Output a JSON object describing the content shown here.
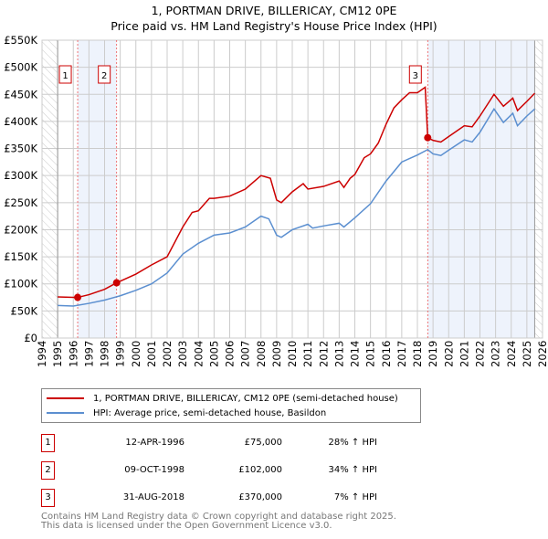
{
  "title": "1, PORTMAN DRIVE, BILLERICAY, CM12 0PE",
  "subtitle": "Price paid vs. HM Land Registry's House Price Index (HPI)",
  "chart_data": {
    "type": "line",
    "xlim": [
      1994,
      2026
    ],
    "ylim": [
      0,
      550000
    ],
    "x_ticks": [
      "1994",
      "1995",
      "1996",
      "1997",
      "1998",
      "1999",
      "2000",
      "2001",
      "2002",
      "2003",
      "2004",
      "2005",
      "2006",
      "2007",
      "2008",
      "2009",
      "2010",
      "2011",
      "2012",
      "2013",
      "2014",
      "2015",
      "2016",
      "2017",
      "2018",
      "2019",
      "2020",
      "2021",
      "2022",
      "2023",
      "2024",
      "2025",
      "2026"
    ],
    "y_ticks": [
      {
        "v": 0,
        "label": "£0"
      },
      {
        "v": 50000,
        "label": "£50K"
      },
      {
        "v": 100000,
        "label": "£100K"
      },
      {
        "v": 150000,
        "label": "£150K"
      },
      {
        "v": 200000,
        "label": "£200K"
      },
      {
        "v": 250000,
        "label": "£250K"
      },
      {
        "v": 300000,
        "label": "£300K"
      },
      {
        "v": 350000,
        "label": "£350K"
      },
      {
        "v": 400000,
        "label": "£400K"
      },
      {
        "v": 450000,
        "label": "£450K"
      },
      {
        "v": 500000,
        "label": "£500K"
      },
      {
        "v": 550000,
        "label": "£550K"
      }
    ],
    "data_range": [
      1995,
      2025.5
    ],
    "series": [
      {
        "name": "1, PORTMAN DRIVE, BILLERICAY, CM12 0PE (semi-detached house)",
        "color": "#cc0000",
        "x": [
          1995,
          1996,
          1996.28,
          1997,
          1998,
          1998.77,
          1999,
          2000,
          2001,
          2002,
          2003,
          2003.6,
          2004,
          2004.7,
          2005,
          2006,
          2007,
          2008,
          2008.6,
          2009,
          2009.3,
          2010,
          2010.7,
          2011,
          2012,
          2013,
          2013.3,
          2013.7,
          2014,
          2014.6,
          2015,
          2015.5,
          2016,
          2016.5,
          2017,
          2017.5,
          2018,
          2018.5,
          2018.66,
          2019,
          2019.5,
          2020,
          2021,
          2021.5,
          2022,
          2022.9,
          2023.5,
          2024.1,
          2024.4,
          2025,
          2025.5
        ],
        "y": [
          76000,
          75000,
          75000,
          80000,
          90000,
          102000,
          105000,
          118000,
          135000,
          150000,
          205000,
          232000,
          235000,
          258000,
          258000,
          262000,
          275000,
          300000,
          295000,
          255000,
          250000,
          270000,
          285000,
          275000,
          280000,
          290000,
          278000,
          295000,
          302000,
          333000,
          340000,
          360000,
          395000,
          425000,
          440000,
          453000,
          453000,
          463000,
          370000,
          365000,
          362000,
          372000,
          392000,
          390000,
          410000,
          450000,
          428000,
          443000,
          420000,
          437000,
          452000
        ]
      },
      {
        "name": "HPI: Average price, semi-detached house, Basildon",
        "color": "#5b8fd0",
        "x": [
          1995,
          1996,
          1997,
          1998,
          1999,
          2000,
          2001,
          2002,
          2003,
          2004,
          2005,
          2006,
          2007,
          2008,
          2008.5,
          2009,
          2009.3,
          2010,
          2011,
          2011.3,
          2012,
          2013,
          2013.3,
          2014,
          2015,
          2016,
          2017,
          2018,
          2018.66,
          2019,
          2019.5,
          2020,
          2021,
          2021.5,
          2022,
          2022.9,
          2023.5,
          2024.1,
          2024.4,
          2025,
          2025.5
        ],
        "y": [
          60000,
          59000,
          64000,
          70000,
          78000,
          88000,
          100000,
          120000,
          155000,
          175000,
          190000,
          194000,
          205000,
          225000,
          220000,
          190000,
          186000,
          200000,
          210000,
          203000,
          207000,
          212000,
          205000,
          222000,
          248000,
          290000,
          325000,
          338000,
          348000,
          340000,
          337000,
          347000,
          366000,
          362000,
          380000,
          423000,
          398000,
          415000,
          392000,
          410000,
          423000
        ]
      }
    ],
    "sales": [
      {
        "id": "1",
        "x": 1996.28,
        "y": 75000,
        "date": "12-APR-1996",
        "price": "£75,000",
        "hpi": "28% ↑ HPI"
      },
      {
        "id": "2",
        "x": 1998.77,
        "y": 102000,
        "date": "09-OCT-1998",
        "price": "£102,000",
        "hpi": "34% ↑ HPI"
      },
      {
        "id": "3",
        "x": 2018.66,
        "y": 370000,
        "date": "31-AUG-2018",
        "price": "£370,000",
        "hpi": "7% ↑ HPI"
      }
    ],
    "legend_placement": "below"
  },
  "footer": {
    "line1": "Contains HM Land Registry data © Crown copyright and database right 2025.",
    "line2": "This data is licensed under the Open Government Licence v3.0."
  }
}
